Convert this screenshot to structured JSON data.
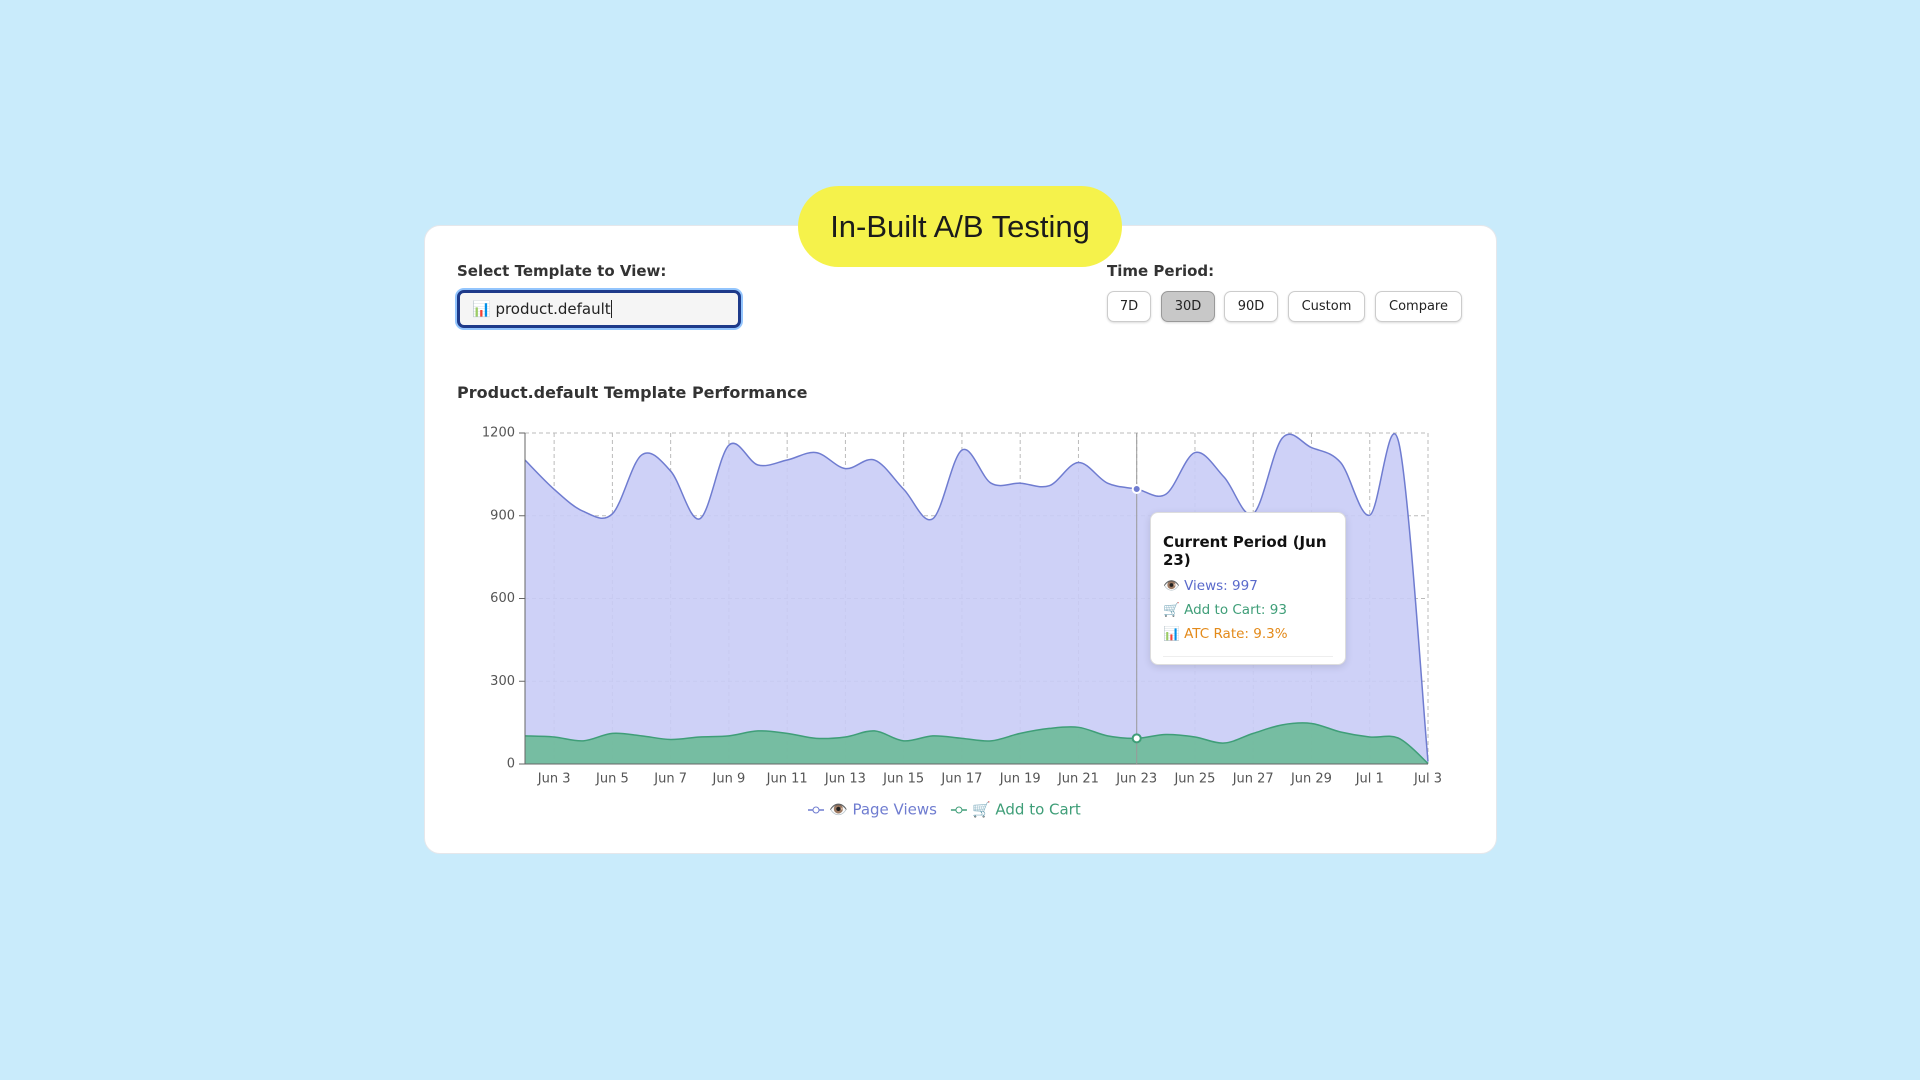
{
  "header": {
    "badge": "In-Built A/B Testing"
  },
  "template_selector": {
    "label": "Select Template to View:",
    "value": "📊 product.default"
  },
  "time_period": {
    "label": "Time Period:",
    "options": [
      "7D",
      "30D",
      "90D",
      "Custom",
      "Compare"
    ],
    "selected": 1
  },
  "chart_data": {
    "type": "area",
    "title": "Product.default Template Performance",
    "categories": [
      null,
      "Jun 3",
      null,
      "Jun 5",
      null,
      "Jun 7",
      null,
      "Jun 9",
      null,
      "Jun 11",
      null,
      "Jun 13",
      null,
      "Jun 15",
      null,
      "Jun 17",
      null,
      "Jun 19",
      null,
      "Jun 21",
      null,
      "Jun 23",
      null,
      "Jun 25",
      null,
      "Jun 27",
      null,
      "Jun 29",
      null,
      "Jul 1",
      null,
      "Jul 3"
    ],
    "series": [
      {
        "name": "👁️ Page Views",
        "color": "#6f7cd0",
        "fill": "#c9ccf6",
        "values": [
          1102,
          996,
          916,
          907,
          1120,
          1062,
          889,
          1156,
          1084,
          1102,
          1129,
          1071,
          1102,
          996,
          889,
          1138,
          1018,
          1018,
          1009,
          1093,
          1018,
          997,
          978,
          1129,
          1040,
          907,
          1182,
          1147,
          1093,
          902,
          1164,
          9
        ]
      },
      {
        "name": "🛒 Add to Cart",
        "color": "#3f9e78",
        "fill": "#6dba98",
        "values": [
          102,
          98,
          84,
          111,
          102,
          89,
          98,
          102,
          120,
          111,
          93,
          98,
          120,
          84,
          102,
          93,
          84,
          111,
          129,
          133,
          102,
          93,
          107,
          98,
          76,
          111,
          142,
          147,
          116,
          98,
          93,
          2
        ]
      }
    ],
    "ylim": [
      0,
      1200
    ],
    "yticks": [
      0,
      300,
      600,
      900,
      1200
    ],
    "grid": true,
    "legend": "bottom",
    "highlight_index": 21
  },
  "tooltip": {
    "title": "Current Period (Jun 23)",
    "lines": [
      {
        "text": "👁️ Views: 997",
        "color": "#5a6acb"
      },
      {
        "text": "🛒 Add to Cart: 93",
        "color": "#3f9e78"
      },
      {
        "text": "📊 ATC Rate: 9.3%",
        "color": "#e38a1a"
      }
    ]
  }
}
